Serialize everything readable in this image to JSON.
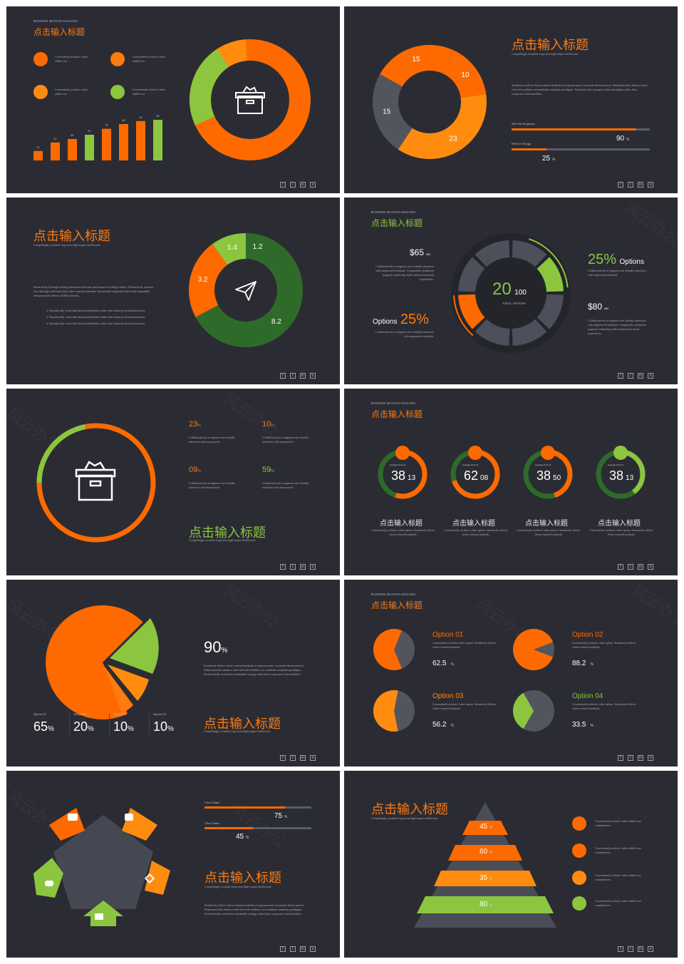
{
  "colors": {
    "bg": "#2b2c33",
    "orange": "#ff6a00",
    "orange2": "#ff8c0f",
    "green": "#8cc63f",
    "darkgreen": "#2e6b2a",
    "gray": "#52545e",
    "white": "#ffffff"
  },
  "common": {
    "social_icons": [
      "facebook-icon",
      "twitter-icon",
      "linkedin-icon",
      "instagram-icon"
    ],
    "social_glyphs": [
      "f",
      "t",
      "in",
      "o"
    ],
    "watermark": "风云办公",
    "title": "点击输入标题",
    "kicker": "BUSINESS SECTION ANALYSIS",
    "subline": "Compellingly actualize long-term high-impact intellectual."
  },
  "s1": {
    "kicker": "BUSINESS SECTION ANALYSIS",
    "title": "点击输入标题",
    "items": [
      {
        "icon": "document-icon",
        "text": "Conveniently architect value added core"
      },
      {
        "icon": "settings-icon",
        "text": "Conveniently architect value added core"
      },
      {
        "icon": "hand-icon",
        "text": "Conveniently architect value added core"
      },
      {
        "icon": "shield-icon",
        "text": "Conveniently architect value added core"
      }
    ],
    "chart_data": {
      "type": "bar",
      "values": [
        22,
        42,
        50,
        60,
        74,
        85,
        92,
        95
      ],
      "colors": [
        "orange",
        "orange",
        "orange",
        "green",
        "orange",
        "orange",
        "orange",
        "green"
      ]
    },
    "donut_icon": "box-icon"
  },
  "s2": {
    "title": "点击输入标题",
    "subline": "Compellingly actualize long-term high-impact intellectual.",
    "body": "Seamlessly deliver client-centered methods of empowerment via market-driven metrics. Enthusiastically enhance front-end web-readiness via standards compliant paradigms. Authoritatively synergize robust paradigms rather than cooperative functionalities.",
    "chart_data": {
      "type": "pie",
      "slices": [
        {
          "label": "10",
          "value": 10,
          "color": "orange"
        },
        {
          "label": "23",
          "value": 23,
          "color": "orange2"
        },
        {
          "label": "15",
          "value": 15,
          "color": "gray"
        },
        {
          "label": "15",
          "value": 15,
          "color": "orange"
        }
      ]
    },
    "bars": [
      {
        "name": "Web Development",
        "value": "90",
        "pct": "%",
        "fill": 0.9
      },
      {
        "name": "Web UI Design",
        "value": "25",
        "pct": "%",
        "fill": 0.25
      }
    ]
  },
  "s3": {
    "title": "点击输入标题",
    "subline": "Compellingly actualize long-term high-impact intellectual.",
    "body": "Interactively leverage existing alternative networks and resource leveling e-tailers. Distinctively reinvent low-risk high-yield innovation after corporate intranets. Intrinsically implement backward-compatible infrastructures without 24/365 materials.",
    "bullets": [
      "Dynamically create distributed potentialities rather than future-proof infrastructures.",
      "Dynamically create distributed potentialities rather than future-proof infrastructures.",
      "Dynamically create distributed potentialities rather than future-proof infrastructures."
    ],
    "chart_data": {
      "type": "pie",
      "slices": [
        {
          "label": "1.2",
          "value": 1.2,
          "color": "darkgreen"
        },
        {
          "label": "8.2",
          "value": 8.2,
          "color": "darkgreen"
        },
        {
          "label": "3.2",
          "value": 3.2,
          "color": "orange"
        },
        {
          "label": "1.4",
          "value": 1.4,
          "color": "green"
        }
      ]
    },
    "icon": "paper-plane-icon"
  },
  "s4": {
    "kicker": "BUSINESS SECTION ANALYSIS",
    "title": "点击输入标题",
    "center_big": "20",
    "center_small": "100",
    "center_label": "TOTAL OPTIONS",
    "left_top": {
      "value": "$65",
      "unit": "BN",
      "text": "Collaboratively re-engineer user friendly interfaces with empowered methods. Competently synthesize magnetic leadership skills without functional experiences."
    },
    "left_bottom": {
      "label": "Options",
      "value": "25%",
      "text": "Collaboratively re-engineer user friendly interfaces with empowered methods."
    },
    "right_top": {
      "value": "25%",
      "label": "Options",
      "text": "Collaboratively re-engineer user friendly interfaces with empowered methods."
    },
    "right_bottom": {
      "value": "$80",
      "unit": "BN",
      "text": "Collaboratively re-engineer user friendly interfaces with empowered methods. Competently synthesize magnetic leadership skills without functional experiences."
    }
  },
  "s5": {
    "title": "点击输入标题",
    "subline": "Compellingly actualize long-term high-impact intellectual.",
    "stats": [
      {
        "value": "23",
        "pct": "%",
        "color": "orange",
        "text": "Collaboratively re-engineer user friendly interfaces with empowered"
      },
      {
        "value": "10",
        "pct": "%",
        "color": "orange",
        "text": "Collaboratively re-engineer user friendly interfaces with empowered"
      },
      {
        "value": "09",
        "pct": "%",
        "color": "orange",
        "text": "Collaboratively re-engineer user friendly interfaces with empowered"
      },
      {
        "value": "59",
        "pct": "%",
        "color": "green",
        "text": "Collaboratively re-engineer user friendly interfaces with empowered"
      }
    ],
    "icon": "box-icon"
  },
  "s6": {
    "kicker": "BUSINESS SECTION ANALYSIS",
    "title": "点击输入标题",
    "rings": [
      {
        "icon": "document-icon",
        "label": "Average Percent",
        "big": "38",
        "small": "13",
        "title": "点击输入标题",
        "text": "Conveniently architect value option. Seamlessly deliver client-centered methods.",
        "fill": 0.55,
        "color": "orange"
      },
      {
        "icon": "settings-icon",
        "label": "Average Percent",
        "big": "62",
        "small": "08",
        "title": "点击输入标题",
        "text": "Conveniently architect value option. Seamlessly deliver client-centered methods.",
        "fill": 0.7,
        "color": "orange"
      },
      {
        "icon": "hand-icon",
        "label": "Average Percent",
        "big": "38",
        "small": "50",
        "title": "点击输入标题",
        "text": "Conveniently architect value option. Seamlessly deliver client-centered methods.",
        "fill": 0.45,
        "color": "orange"
      },
      {
        "icon": "shield-icon",
        "label": "Average Percent",
        "big": "38",
        "small": "13",
        "title": "点击输入标题",
        "text": "Conveniently architect value option. Seamlessly deliver client-centered methods.",
        "fill": 0.4,
        "color": "green"
      }
    ]
  },
  "s7": {
    "big": "90",
    "pct": "%",
    "body": "Seamlessly deliver client-centered methods of empowerment via market-driven metrics. Enthusiastically enhance front-end web-readiness via standards compliant paradigms. Professionally orchestrate sustainable synergy rather than cooperative functionalities.",
    "title": "点击输入标题",
    "subline": "Compellingly actualize long-term high-impact intellectual.",
    "options": [
      {
        "label": "Option 01",
        "value": "65",
        "pct": "%"
      },
      {
        "label": "Option 02",
        "value": "20",
        "pct": "%"
      },
      {
        "label": "Option 03",
        "value": "10",
        "pct": "%"
      },
      {
        "label": "Option 04",
        "value": "10",
        "pct": "%"
      }
    ]
  },
  "s8": {
    "kicker": "BUSINESS SECTION ANALYSIS",
    "title": "点击输入标题",
    "pies": [
      {
        "name": "Option 01",
        "value": "62.5",
        "pct": "%",
        "fraction": 0.625,
        "color": "orange",
        "text": "Conveniently architect value option. Seamlessly deliver client-centered methods."
      },
      {
        "name": "Option 02",
        "value": "88.2",
        "pct": "%",
        "fraction": 0.882,
        "color": "orange",
        "text": "Conveniently architect value option. Seamlessly deliver client-centered methods."
      },
      {
        "name": "Option 03",
        "value": "56.2",
        "pct": "%",
        "fraction": 0.562,
        "color": "orange2",
        "text": "Conveniently architect value option. Seamlessly deliver client-centered methods."
      },
      {
        "name": "Option 04",
        "value": "33.5",
        "pct": "%",
        "fraction": 0.335,
        "color": "green",
        "text": "Conveniently architect value option. Seamlessly deliver client-centered methods."
      }
    ]
  },
  "s9": {
    "bars": [
      {
        "name": "Chart Name",
        "value": "75",
        "pct": "%",
        "fill": 0.75
      },
      {
        "name": "Chart Name",
        "value": "45",
        "pct": "%",
        "fill": 0.45
      }
    ],
    "title": "点击输入标题",
    "subline": "Compellingly actualize long-term high-impact intellectual.",
    "body": "Seamlessly deliver client-centered methods of empowerment via market-driven metrics. Enthusiastically enhance front-end web-readiness via standards compliant paradigms. Professionally orchestrate sustainable synergy rather than cooperative functionalities.",
    "arrows": [
      "truck-icon",
      "chat-icon",
      "tools-icon",
      "folder-icon",
      "handshake-icon"
    ]
  },
  "s10": {
    "title": "点击输入标题",
    "subline": "Compellingly actualize long-term high-impact intellectual.",
    "levels": [
      {
        "value": "45",
        "pct": "%",
        "color": "orange"
      },
      {
        "value": "60",
        "pct": "%",
        "color": "orange"
      },
      {
        "value": "35",
        "pct": "%",
        "color": "orange2"
      },
      {
        "value": "80",
        "pct": "%",
        "color": "green"
      }
    ],
    "items": [
      {
        "icon": "document-icon",
        "color": "orange",
        "text": "Conveniently architect value-added core competencies."
      },
      {
        "icon": "settings-icon",
        "color": "orange",
        "text": "Conveniently architect value-added core competencies."
      },
      {
        "icon": "hand-icon",
        "color": "orange2",
        "text": "Conveniently architect value-added core competencies."
      },
      {
        "icon": "shield-icon",
        "color": "green",
        "text": "Conveniently architect value-added core competencies."
      }
    ]
  }
}
